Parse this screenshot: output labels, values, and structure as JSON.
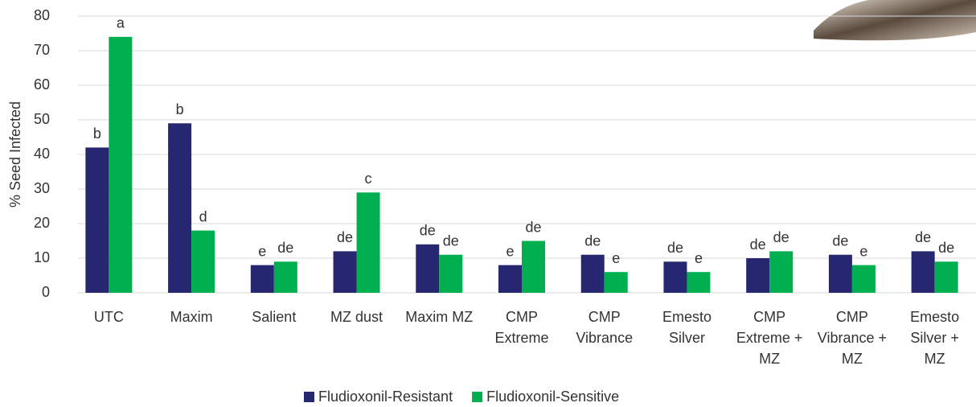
{
  "chart_data": {
    "type": "bar",
    "y_label": "% Seed Infected",
    "categories": [
      [
        "UTC"
      ],
      [
        "Maxim"
      ],
      [
        "Salient"
      ],
      [
        "MZ dust"
      ],
      [
        "Maxim MZ"
      ],
      [
        "CMP",
        "Extreme"
      ],
      [
        "CMP",
        "Vibrance"
      ],
      [
        "Emesto",
        "Silver"
      ],
      [
        "CMP",
        "Extreme +",
        "MZ"
      ],
      [
        "CMP",
        "Vibrance +",
        "MZ"
      ],
      [
        "Emesto",
        "Silver +",
        "MZ"
      ]
    ],
    "series": [
      {
        "name": "Fludioxonil-Resistant",
        "color": "#262671",
        "values": [
          42,
          49,
          8,
          12,
          14,
          8,
          11,
          9,
          10,
          11,
          12
        ],
        "letters": [
          "b",
          "b",
          "e",
          "de",
          "de",
          "e",
          "de",
          "de",
          "de",
          "de",
          "de"
        ]
      },
      {
        "name": "Fludioxonil-Sensitive",
        "color": "#00b050",
        "values": [
          74,
          18,
          9,
          29,
          11,
          15,
          6,
          6,
          12,
          8,
          9
        ],
        "letters": [
          "a",
          "d",
          "de",
          "c",
          "de",
          "de",
          "e",
          "e",
          "de",
          "e",
          "de"
        ]
      }
    ],
    "ylim": [
      0,
      80
    ],
    "yticks": [
      0,
      10,
      20,
      30,
      40,
      50,
      60,
      70,
      80
    ],
    "grid": true,
    "legend": "bottom"
  }
}
